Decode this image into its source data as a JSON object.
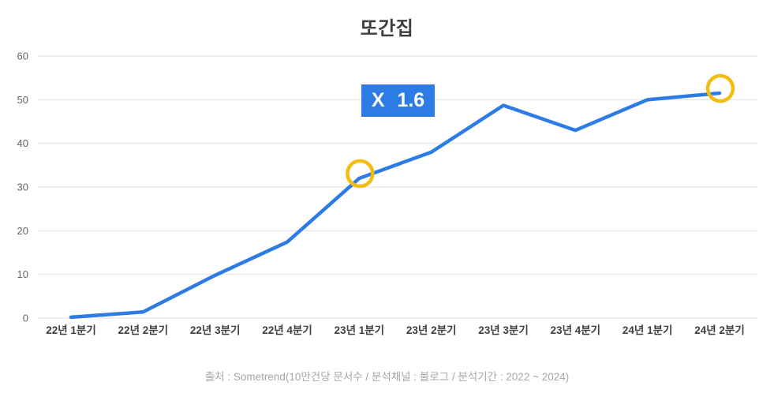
{
  "footer": "출처 : Sometrend(10만건당 문서수 / 분석채널 : 블로그 / 분석기간 : 2022 ~ 2024)",
  "colors": {
    "line": "#2d7ce6",
    "annotation_bg": "#2d7ce6",
    "annotation_text": "#ffffff",
    "highlight_ring": "#f3bd0f",
    "gridline": "#e2e2e2",
    "y_tick_label": "#666666",
    "x_tick_label": "#3c4043",
    "title": "#3d3d3d",
    "footer": "#a6a6a6"
  },
  "chart_data": {
    "type": "line",
    "title": "또간집",
    "categories": [
      "22년 1분기",
      "22년 2분기",
      "22년 3분기",
      "22년 4분기",
      "23년 1분기",
      "23년 2분기",
      "23년 3분기",
      "23년 4분기",
      "24년 1분기",
      "24년 2분기"
    ],
    "values": [
      0.2,
      1.4,
      9.8,
      17.4,
      32,
      38,
      48.7,
      43,
      50,
      51.5
    ],
    "ylim": [
      0,
      60
    ],
    "yticks": [
      0,
      10,
      20,
      30,
      40,
      50,
      60
    ],
    "grid": true,
    "legend_position": "none",
    "annotation": {
      "text": "X 1.6"
    },
    "highlighted_points": [
      {
        "index": 4,
        "category": "23년 1분기",
        "value": 32
      },
      {
        "index": 9,
        "category": "24년 2분기",
        "value": 51.5
      }
    ]
  }
}
